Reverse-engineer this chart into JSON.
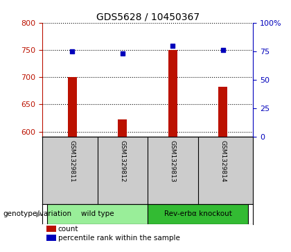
{
  "title": "GDS5628 / 10450367",
  "samples": [
    "GSM1329811",
    "GSM1329812",
    "GSM1329813",
    "GSM1329814"
  ],
  "counts": [
    700,
    623,
    750,
    682
  ],
  "percentiles": [
    75,
    73,
    80,
    76
  ],
  "groups": [
    {
      "label": "wild type",
      "samples": [
        0,
        1
      ],
      "color": "#99ee99"
    },
    {
      "label": "Rev-erbα knockout",
      "samples": [
        2,
        3
      ],
      "color": "#33bb33"
    }
  ],
  "ylim_left": [
    590,
    800
  ],
  "ylim_right": [
    0,
    100
  ],
  "yticks_left": [
    600,
    650,
    700,
    750,
    800
  ],
  "yticks_right": [
    0,
    25,
    50,
    75,
    100
  ],
  "ytick_right_labels": [
    "0",
    "25",
    "50",
    "75",
    "100%"
  ],
  "bar_color": "#bb1100",
  "dot_color": "#0000bb",
  "bar_width": 0.18,
  "bg_color": "#cccccc",
  "label_count": "count",
  "label_percentile": "percentile rank within the sample",
  "xlabel_genotype": "genotype/variation"
}
